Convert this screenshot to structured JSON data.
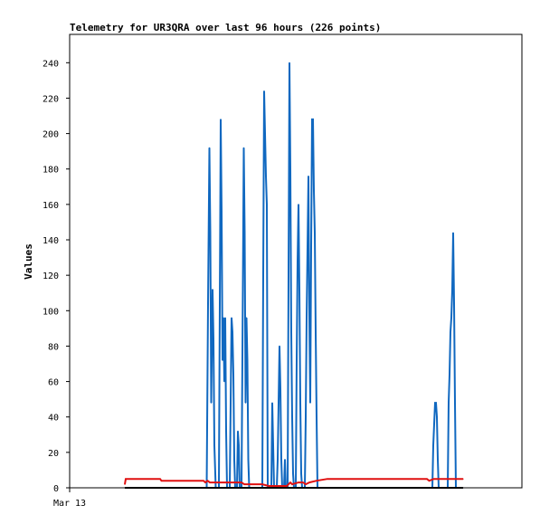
{
  "chart_data": {
    "type": "line",
    "title": "Telemetry for UR3QRA over last 96 hours (226 points)",
    "xlabel": "",
    "ylabel": "Values",
    "ylim": [
      0,
      256
    ],
    "y_ticks": [
      0,
      20,
      40,
      60,
      80,
      100,
      120,
      140,
      160,
      180,
      200,
      220,
      240
    ],
    "x_tick_labels": [
      {
        "label": "Mar 13",
        "frac": 0.0
      }
    ],
    "grid": false,
    "legend": "none",
    "series": [
      {
        "color": "#1068c0",
        "points": [
          [
            0.303,
            0
          ],
          [
            0.306,
            104
          ],
          [
            0.309,
            192
          ],
          [
            0.311,
            144
          ],
          [
            0.313,
            48
          ],
          [
            0.316,
            112
          ],
          [
            0.318,
            84
          ],
          [
            0.32,
            24
          ],
          [
            0.323,
            0
          ],
          [
            0.33,
            0
          ],
          [
            0.332,
            104
          ],
          [
            0.334,
            208
          ],
          [
            0.336,
            156
          ],
          [
            0.338,
            72
          ],
          [
            0.34,
            96
          ],
          [
            0.342,
            60
          ],
          [
            0.344,
            96
          ],
          [
            0.346,
            32
          ],
          [
            0.348,
            0
          ],
          [
            0.354,
            0
          ],
          [
            0.356,
            48
          ],
          [
            0.358,
            96
          ],
          [
            0.36,
            88
          ],
          [
            0.362,
            64
          ],
          [
            0.364,
            16
          ],
          [
            0.366,
            0
          ],
          [
            0.37,
            0
          ],
          [
            0.372,
            32
          ],
          [
            0.374,
            24
          ],
          [
            0.376,
            0
          ],
          [
            0.38,
            0
          ],
          [
            0.383,
            112
          ],
          [
            0.385,
            192
          ],
          [
            0.387,
            144
          ],
          [
            0.389,
            48
          ],
          [
            0.391,
            96
          ],
          [
            0.393,
            72
          ],
          [
            0.395,
            16
          ],
          [
            0.397,
            0
          ],
          [
            0.426,
            0
          ],
          [
            0.428,
            120
          ],
          [
            0.43,
            224
          ],
          [
            0.432,
            200
          ],
          [
            0.434,
            176
          ],
          [
            0.436,
            160
          ],
          [
            0.438,
            0
          ],
          [
            0.446,
            0
          ],
          [
            0.448,
            48
          ],
          [
            0.45,
            24
          ],
          [
            0.452,
            0
          ],
          [
            0.458,
            0
          ],
          [
            0.46,
            16
          ],
          [
            0.462,
            48
          ],
          [
            0.464,
            80
          ],
          [
            0.466,
            56
          ],
          [
            0.468,
            16
          ],
          [
            0.47,
            0
          ],
          [
            0.474,
            0
          ],
          [
            0.476,
            16
          ],
          [
            0.478,
            0
          ],
          [
            0.482,
            0
          ],
          [
            0.484,
            120
          ],
          [
            0.486,
            240
          ],
          [
            0.488,
            180
          ],
          [
            0.49,
            88
          ],
          [
            0.492,
            40
          ],
          [
            0.494,
            8
          ],
          [
            0.496,
            0
          ],
          [
            0.5,
            0
          ],
          [
            0.502,
            72
          ],
          [
            0.504,
            128
          ],
          [
            0.506,
            160
          ],
          [
            0.508,
            112
          ],
          [
            0.51,
            48
          ],
          [
            0.512,
            8
          ],
          [
            0.514,
            0
          ],
          [
            0.52,
            0
          ],
          [
            0.522,
            40
          ],
          [
            0.524,
            96
          ],
          [
            0.526,
            136
          ],
          [
            0.528,
            176
          ],
          [
            0.53,
            96
          ],
          [
            0.532,
            48
          ],
          [
            0.534,
            136
          ],
          [
            0.536,
            208
          ],
          [
            0.538,
            208
          ],
          [
            0.54,
            168
          ],
          [
            0.542,
            144
          ],
          [
            0.544,
            88
          ],
          [
            0.546,
            40
          ],
          [
            0.548,
            0
          ],
          [
            0.802,
            0
          ],
          [
            0.804,
            24
          ],
          [
            0.806,
            36
          ],
          [
            0.808,
            48
          ],
          [
            0.81,
            48
          ],
          [
            0.812,
            40
          ],
          [
            0.814,
            16
          ],
          [
            0.816,
            0
          ],
          [
            0.836,
            0
          ],
          [
            0.838,
            48
          ],
          [
            0.84,
            64
          ],
          [
            0.842,
            88
          ],
          [
            0.844,
            96
          ],
          [
            0.846,
            112
          ],
          [
            0.848,
            144
          ],
          [
            0.85,
            104
          ],
          [
            0.852,
            48
          ],
          [
            0.854,
            0
          ]
        ]
      },
      {
        "color": "#e01010",
        "points": [
          [
            0.122,
            2
          ],
          [
            0.124,
            5
          ],
          [
            0.2,
            5
          ],
          [
            0.203,
            4
          ],
          [
            0.296,
            4
          ],
          [
            0.3,
            3
          ],
          [
            0.305,
            4
          ],
          [
            0.31,
            3
          ],
          [
            0.33,
            3
          ],
          [
            0.34,
            3
          ],
          [
            0.38,
            3
          ],
          [
            0.386,
            2
          ],
          [
            0.426,
            2
          ],
          [
            0.44,
            1
          ],
          [
            0.48,
            1
          ],
          [
            0.488,
            3
          ],
          [
            0.492,
            2
          ],
          [
            0.506,
            3
          ],
          [
            0.516,
            3
          ],
          [
            0.522,
            2
          ],
          [
            0.53,
            3
          ],
          [
            0.546,
            4
          ],
          [
            0.57,
            5
          ],
          [
            0.79,
            5
          ],
          [
            0.795,
            4
          ],
          [
            0.805,
            5
          ],
          [
            0.87,
            5
          ]
        ]
      },
      {
        "color": "#000000",
        "points": [
          [
            0.122,
            0
          ],
          [
            0.87,
            0
          ]
        ]
      }
    ]
  }
}
